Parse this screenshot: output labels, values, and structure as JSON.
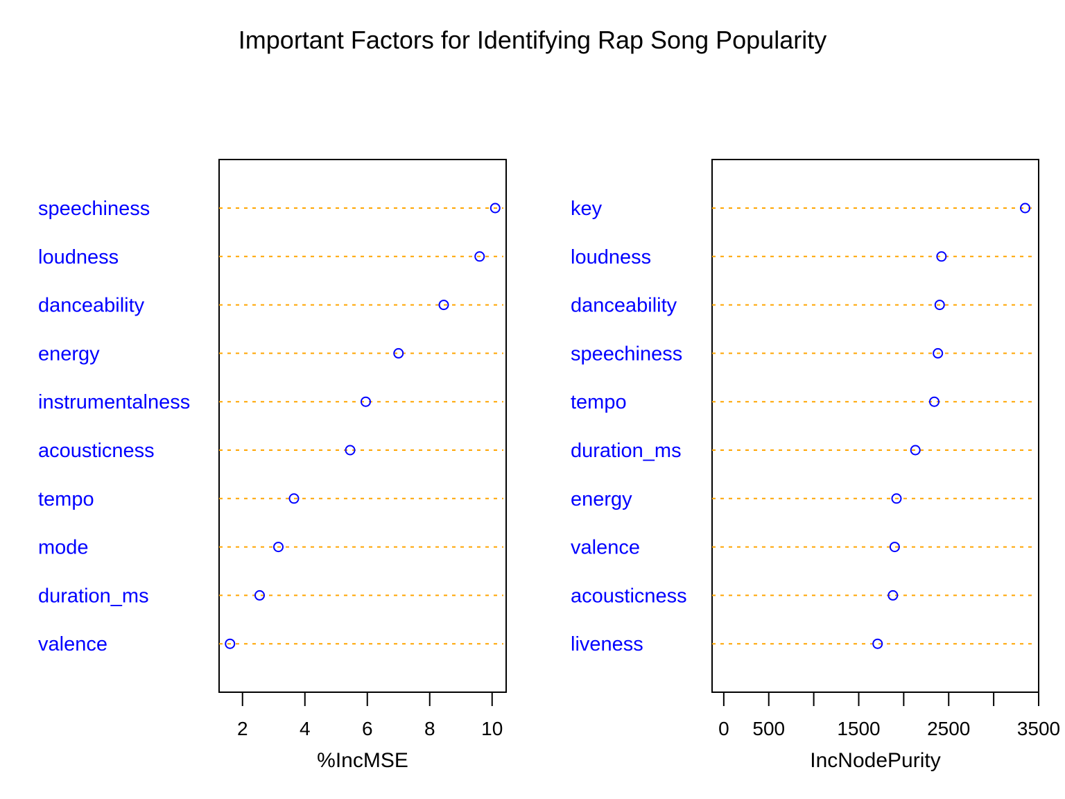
{
  "chart_data": {
    "title": "Important Factors for Identifying Rap Song Popularity",
    "panels": [
      {
        "type": "scatter",
        "xlabel": "%IncMSE",
        "xlim": [
          1.25,
          10.45
        ],
        "xticks": [
          2,
          4,
          6,
          8,
          10
        ],
        "categories": [
          "speechiness",
          "loudness",
          "danceability",
          "energy",
          "instrumentalness",
          "acousticness",
          "tempo",
          "mode",
          "duration_ms",
          "valence"
        ],
        "values": [
          10.1,
          9.6,
          8.45,
          7.0,
          5.95,
          5.45,
          3.65,
          3.15,
          2.55,
          1.6
        ]
      },
      {
        "type": "scatter",
        "xlabel": "IncNodePurity",
        "xlim": [
          -130,
          3500
        ],
        "xticks": [
          0,
          500,
          1000,
          1500,
          2000,
          2500,
          3000,
          3500
        ],
        "xticklabels": [
          "0",
          "500",
          "",
          "1500",
          "",
          "2500",
          "",
          "3500"
        ],
        "categories": [
          "key",
          "loudness",
          "danceability",
          "speechiness",
          "tempo",
          "duration_ms",
          "energy",
          "valence",
          "acousticness",
          "liveness"
        ],
        "values": [
          3350,
          2420,
          2400,
          2380,
          2340,
          2130,
          1920,
          1900,
          1880,
          1710
        ]
      }
    ],
    "grid": false,
    "colors": {
      "points": "#0000ff",
      "guides": "#ffa500",
      "labels": "#0000ff"
    }
  }
}
